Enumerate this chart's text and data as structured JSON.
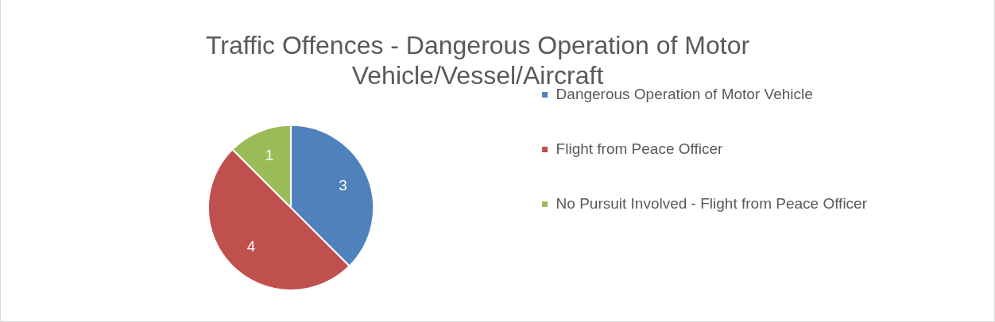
{
  "chart_data": {
    "type": "pie",
    "title": "Traffic Offences - Dangerous Operation of Motor Vehicle/Vessel/Aircraft",
    "categories": [
      "Dangerous Operation of Motor Vehicle",
      "Flight from Peace Officer",
      "No Pursuit Involved - Flight from Peace Officer"
    ],
    "values": [
      3,
      4,
      1
    ],
    "colors": [
      "#4f81bd",
      "#c0504d",
      "#9bbb59"
    ],
    "data_labels": true,
    "legend": "right"
  }
}
